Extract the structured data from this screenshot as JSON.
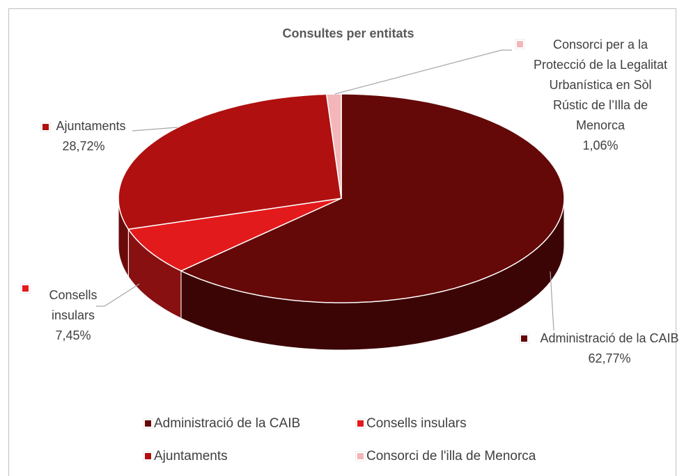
{
  "chart_data": {
    "type": "pie",
    "title": "Consultes per entitats",
    "categories": [
      "Administració de la CAIB",
      "Consells insulars",
      "Ajuntaments",
      "Consorci de l'illa de Menorca"
    ],
    "label_names": [
      "Administració de la CAIB",
      "Consells insulars",
      "Ajuntaments",
      "Consorci per a la Protecció de la Legalitat Urbanística en Sòl Rústic de l’Illa de Menorca"
    ],
    "values": [
      62.77,
      7.45,
      28.72,
      1.06
    ],
    "value_labels": [
      "62,77%",
      "7,45%",
      "28,72%",
      "1,06%"
    ],
    "colors": [
      "#640808",
      "#e31a1c",
      "#b01010",
      "#f4b6b8"
    ]
  }
}
